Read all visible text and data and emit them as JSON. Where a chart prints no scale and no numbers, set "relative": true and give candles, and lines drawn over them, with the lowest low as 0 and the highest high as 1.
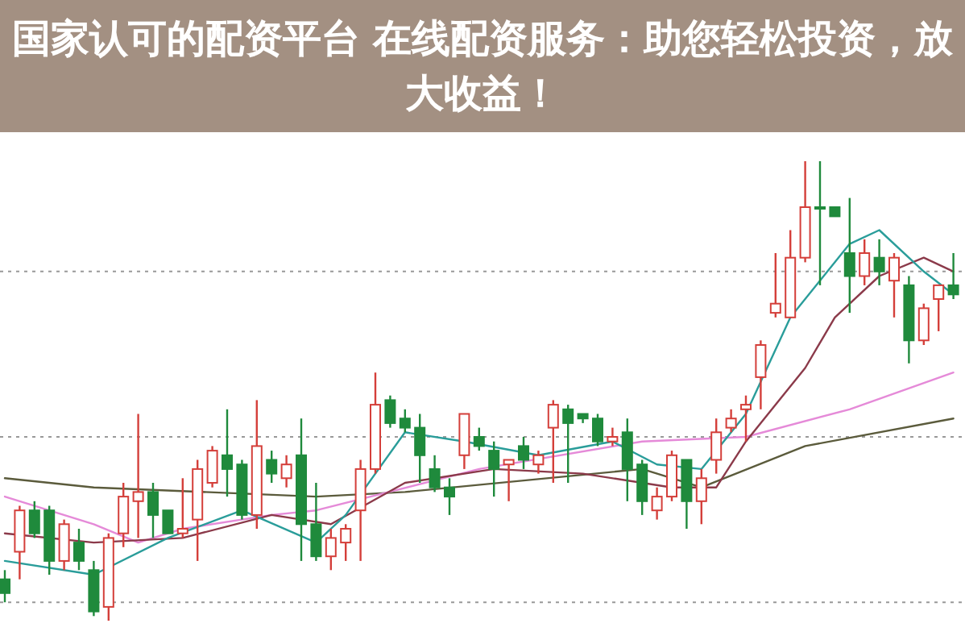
{
  "chart_data": {
    "type": "candlestick",
    "title": "国家认可的配资平台 在线配资服务：助您轻松投资，放大收益！",
    "relative": true,
    "categories": [
      null,
      null,
      null,
      null,
      null,
      null,
      null,
      null,
      null,
      null,
      null,
      null,
      null,
      null,
      null,
      null,
      null,
      null,
      null,
      null,
      null,
      null,
      null,
      null,
      null,
      null,
      null,
      null,
      null,
      null,
      null,
      null,
      null,
      null,
      null,
      null,
      null,
      null,
      null,
      null,
      null,
      null,
      null,
      null,
      null,
      null,
      null,
      null,
      null,
      null,
      null,
      null,
      null,
      null,
      null,
      null,
      null,
      null,
      null,
      null,
      null,
      null,
      null,
      null,
      null
    ],
    "ohlc": [
      [
        0.09,
        0.11,
        0.04,
        0.06
      ],
      [
        0.15,
        0.25,
        0.09,
        0.24
      ],
      [
        0.24,
        0.26,
        0.18,
        0.19
      ],
      [
        0.24,
        0.25,
        0.1,
        0.13
      ],
      [
        0.13,
        0.22,
        0.11,
        0.21
      ],
      [
        0.17,
        0.2,
        0.11,
        0.13
      ],
      [
        0.11,
        0.13,
        0.01,
        0.02
      ],
      [
        0.03,
        0.19,
        0.0,
        0.18
      ],
      [
        0.19,
        0.3,
        0.16,
        0.27
      ],
      [
        0.26,
        0.45,
        0.18,
        0.28
      ],
      [
        0.28,
        0.3,
        0.18,
        0.23
      ],
      [
        0.24,
        0.24,
        0.19,
        0.19
      ],
      [
        0.19,
        0.31,
        0.18,
        0.2
      ],
      [
        0.22,
        0.35,
        0.13,
        0.33
      ],
      [
        0.3,
        0.38,
        0.29,
        0.37
      ],
      [
        0.36,
        0.46,
        0.27,
        0.33
      ],
      [
        0.34,
        0.35,
        0.22,
        0.23
      ],
      [
        0.23,
        0.48,
        0.2,
        0.38
      ],
      [
        0.35,
        0.37,
        0.3,
        0.32
      ],
      [
        0.31,
        0.36,
        0.29,
        0.34
      ],
      [
        0.36,
        0.44,
        0.13,
        0.21
      ],
      [
        0.21,
        0.3,
        0.13,
        0.14
      ],
      [
        0.14,
        0.2,
        0.11,
        0.18
      ],
      [
        0.17,
        0.21,
        0.13,
        0.2
      ],
      [
        0.24,
        0.35,
        0.13,
        0.33
      ],
      [
        0.33,
        0.54,
        0.32,
        0.47
      ],
      [
        0.48,
        0.49,
        0.42,
        0.43
      ],
      [
        0.44,
        0.46,
        0.41,
        0.42
      ],
      [
        0.42,
        0.45,
        0.3,
        0.36
      ],
      [
        0.33,
        0.36,
        0.28,
        0.29
      ],
      [
        0.29,
        0.31,
        0.23,
        0.27
      ],
      [
        0.36,
        0.45,
        0.33,
        0.45
      ],
      [
        0.4,
        0.42,
        0.37,
        0.38
      ],
      [
        0.37,
        0.39,
        0.27,
        0.33
      ],
      [
        0.34,
        0.35,
        0.26,
        0.35
      ],
      [
        0.38,
        0.4,
        0.33,
        0.35
      ],
      [
        0.34,
        0.37,
        0.32,
        0.36
      ],
      [
        0.42,
        0.48,
        0.3,
        0.47
      ],
      [
        0.46,
        0.47,
        0.3,
        0.43
      ],
      [
        0.45,
        0.45,
        0.43,
        0.44
      ],
      [
        0.44,
        0.45,
        0.38,
        0.39
      ],
      [
        0.39,
        0.42,
        0.38,
        0.4
      ],
      [
        0.41,
        0.44,
        0.26,
        0.33
      ],
      [
        0.34,
        0.35,
        0.23,
        0.26
      ],
      [
        0.24,
        0.29,
        0.22,
        0.27
      ],
      [
        0.27,
        0.37,
        0.26,
        0.36
      ],
      [
        0.35,
        0.35,
        0.2,
        0.26
      ],
      [
        0.26,
        0.33,
        0.21,
        0.31
      ],
      [
        0.35,
        0.44,
        0.32,
        0.41
      ],
      [
        0.42,
        0.46,
        0.41,
        0.44
      ],
      [
        0.46,
        0.49,
        0.39,
        0.47
      ],
      [
        0.53,
        0.61,
        0.46,
        0.6
      ],
      [
        0.67,
        0.8,
        0.66,
        0.69
      ],
      [
        0.66,
        0.85,
        0.66,
        0.79
      ],
      [
        0.79,
        1.0,
        0.78,
        0.9
      ],
      [
        0.9,
        1.0,
        0.73,
        0.9
      ],
      [
        0.9,
        0.9,
        0.88,
        0.88
      ],
      [
        0.8,
        0.92,
        0.67,
        0.75
      ],
      [
        0.75,
        0.83,
        0.73,
        0.8
      ],
      [
        0.79,
        0.83,
        0.73,
        0.76
      ],
      [
        0.74,
        0.8,
        0.66,
        0.79
      ],
      [
        0.73,
        0.75,
        0.56,
        0.61
      ],
      [
        0.61,
        0.69,
        0.6,
        0.68
      ],
      [
        0.7,
        0.73,
        0.63,
        0.73
      ],
      [
        0.73,
        0.8,
        0.7,
        0.71
      ]
    ],
    "colors": [
      "#1f8a3c",
      "#d43f3a",
      "#1f8a3c",
      "#1f8a3c",
      "#d43f3a",
      "#1f8a3c",
      "#1f8a3c",
      "#d43f3a",
      "#d43f3a",
      "#d43f3a",
      "#1f8a3c",
      "#1f8a3c",
      "#d43f3a",
      "#d43f3a",
      "#d43f3a",
      "#1f8a3c",
      "#1f8a3c",
      "#d43f3a",
      "#1f8a3c",
      "#d43f3a",
      "#1f8a3c",
      "#1f8a3c",
      "#d43f3a",
      "#d43f3a",
      "#d43f3a",
      "#d43f3a",
      "#1f8a3c",
      "#1f8a3c",
      "#1f8a3c",
      "#1f8a3c",
      "#1f8a3c",
      "#d43f3a",
      "#1f8a3c",
      "#1f8a3c",
      "#d43f3a",
      "#1f8a3c",
      "#d43f3a",
      "#d43f3a",
      "#1f8a3c",
      "#1f8a3c",
      "#1f8a3c",
      "#d43f3a",
      "#1f8a3c",
      "#1f8a3c",
      "#d43f3a",
      "#d43f3a",
      "#1f8a3c",
      "#d43f3a",
      "#d43f3a",
      "#d43f3a",
      "#d43f3a",
      "#d43f3a",
      "#d43f3a",
      "#d43f3a",
      "#d43f3a",
      "#1f8a3c",
      "#1f8a3c",
      "#1f8a3c",
      "#d43f3a",
      "#1f8a3c",
      "#d43f3a",
      "#1f8a3c",
      "#d43f3a",
      "#d43f3a",
      "#1f8a3c"
    ],
    "series": [
      {
        "type": "line",
        "color": "#5b5b3c",
        "values": [
          0.31,
          null,
          null,
          null,
          null,
          null,
          0.29,
          null,
          null,
          null,
          null,
          null,
          null,
          null,
          null,
          null,
          null,
          null,
          null,
          null,
          null,
          0.27,
          null,
          null,
          null,
          null,
          null,
          0.28,
          null,
          null,
          null,
          null,
          null,
          null,
          null,
          null,
          null,
          null,
          null,
          null,
          null,
          null,
          null,
          0.33,
          null,
          null,
          null,
          0.29,
          null,
          null,
          null,
          null,
          null,
          null,
          0.38,
          null,
          null,
          null,
          null,
          null,
          null,
          null,
          null,
          null,
          0.44
        ]
      },
      {
        "type": "line",
        "color": "#e58ad8",
        "values": [
          0.27,
          null,
          null,
          null,
          null,
          null,
          0.21,
          null,
          null,
          0.17,
          null,
          null,
          0.2,
          null,
          null,
          null,
          null,
          null,
          0.23,
          null,
          null,
          0.24,
          null,
          null,
          null,
          null,
          null,
          null,
          null,
          null,
          null,
          null,
          0.33,
          null,
          null,
          null,
          null,
          null,
          null,
          null,
          null,
          null,
          null,
          0.39,
          null,
          null,
          null,
          null,
          null,
          null,
          0.4,
          null,
          null,
          null,
          null,
          null,
          null,
          0.46,
          null,
          null,
          null,
          null,
          null,
          null,
          0.54
        ]
      },
      {
        "type": "line",
        "color": "#8b3a4a",
        "values": [
          0.19,
          null,
          null,
          null,
          null,
          null,
          0.17,
          null,
          null,
          null,
          null,
          null,
          0.18,
          null,
          null,
          null,
          null,
          null,
          0.23,
          null,
          null,
          null,
          0.21,
          null,
          null,
          null,
          null,
          0.3,
          null,
          null,
          null,
          null,
          null,
          0.33,
          null,
          null,
          null,
          null,
          null,
          0.32,
          null,
          null,
          null,
          null,
          null,
          0.29,
          null,
          null,
          0.29,
          null,
          0.39,
          null,
          null,
          null,
          0.55,
          null,
          0.66,
          null,
          null,
          0.75,
          null,
          null,
          0.79,
          null,
          0.76
        ]
      },
      {
        "type": "line",
        "color": "#2a9d9a",
        "values": [
          0.13,
          null,
          null,
          null,
          null,
          null,
          0.1,
          null,
          null,
          null,
          null,
          0.18,
          null,
          null,
          null,
          null,
          0.24,
          null,
          null,
          null,
          null,
          0.17,
          null,
          0.23,
          null,
          null,
          null,
          0.41,
          null,
          null,
          null,
          0.39,
          null,
          null,
          null,
          null,
          0.36,
          null,
          null,
          null,
          null,
          0.39,
          null,
          null,
          0.34,
          null,
          null,
          0.33,
          null,
          null,
          0.45,
          null,
          null,
          0.66,
          null,
          null,
          null,
          0.82,
          null,
          0.85,
          null,
          null,
          0.76,
          null,
          0.71
        ]
      }
    ],
    "ref_lines": [
      {
        "axis": "y",
        "value": 0.76,
        "line_style": "dotted",
        "color": "#999999"
      },
      {
        "axis": "y",
        "value": 0.4,
        "line_style": "dotted",
        "color": "#999999"
      },
      {
        "axis": "y",
        "value": 0.04,
        "line_style": "dotted",
        "color": "#999999"
      }
    ]
  }
}
